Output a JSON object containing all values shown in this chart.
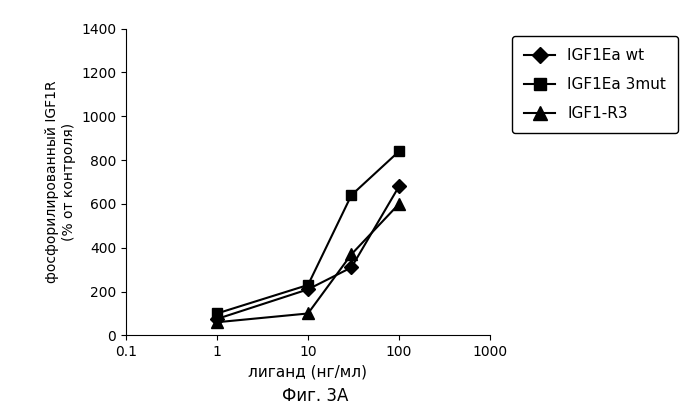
{
  "series": [
    {
      "label": "IGF1Ea wt",
      "x": [
        1,
        10,
        30,
        100
      ],
      "y": [
        75,
        210,
        310,
        680
      ],
      "marker": "D",
      "color": "#000000",
      "markersize": 7,
      "linewidth": 1.5
    },
    {
      "label": "IGF1Ea 3mut",
      "x": [
        1,
        10,
        30,
        100
      ],
      "y": [
        100,
        230,
        640,
        840
      ],
      "marker": "s",
      "color": "#000000",
      "markersize": 7,
      "linewidth": 1.5
    },
    {
      "label": "IGF1-R3",
      "x": [
        1,
        10,
        30,
        100
      ],
      "y": [
        60,
        100,
        370,
        600
      ],
      "marker": "^",
      "color": "#000000",
      "markersize": 8,
      "linewidth": 1.5
    }
  ],
  "xlabel": "лиганд (нг/мл)",
  "ylabel_line1": "фосфорилированный IGF1R",
  "ylabel_line2": "(% от контроля)",
  "ylim": [
    0,
    1400
  ],
  "yticks": [
    0,
    200,
    400,
    600,
    800,
    1000,
    1200,
    1400
  ],
  "xticks": [
    0.1,
    1,
    10,
    100,
    1000
  ],
  "xticklabels": [
    "0.1",
    "1",
    "10",
    "100",
    "1000"
  ],
  "xlim_log": [
    0.1,
    1000
  ],
  "caption": "Фиг. 3A",
  "background_color": "#ffffff"
}
